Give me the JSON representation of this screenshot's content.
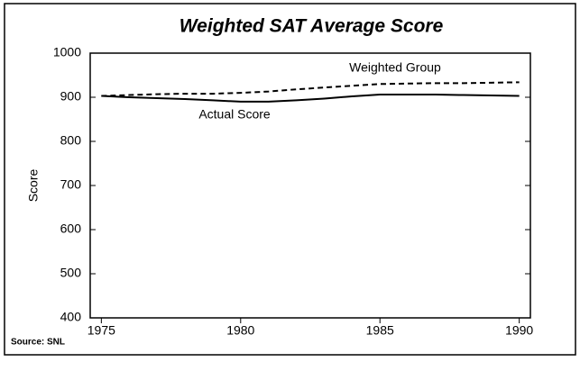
{
  "chart_data": {
    "type": "line",
    "title": "Weighted SAT Average Score",
    "y_label": "Score",
    "source": "Source: SNL",
    "x": [
      1975,
      1976,
      1977,
      1978,
      1979,
      1980,
      1981,
      1982,
      1983,
      1984,
      1985,
      1986,
      1987,
      1988,
      1989,
      1990
    ],
    "series": [
      {
        "name": "Weighted Group",
        "color": "#000000",
        "dash": true,
        "values": [
          903,
          905,
          907,
          908,
          908,
          910,
          913,
          918,
          922,
          926,
          930,
          931,
          932,
          932,
          933,
          934
        ]
      },
      {
        "name": "Actual Score",
        "color": "#000000",
        "dash": false,
        "values": [
          903,
          900,
          898,
          896,
          893,
          890,
          890,
          893,
          897,
          902,
          906,
          906,
          906,
          905,
          904,
          903
        ]
      }
    ],
    "xlim": [
      1974.6,
      1990.4
    ],
    "xticks": [
      1975,
      1980,
      1985,
      1990
    ],
    "ylim": [
      400,
      1000
    ],
    "yticks": [
      400,
      500,
      600,
      700,
      800,
      900,
      1000
    ]
  }
}
